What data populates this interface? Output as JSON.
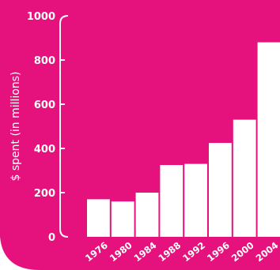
{
  "colors": {
    "panel": "#e5127d",
    "bar": "#ffffff",
    "text": "#ffffff",
    "page": "#ffffff"
  },
  "chart_data": {
    "type": "bar",
    "title": "",
    "xlabel": "",
    "ylabel": "$ spent (in millions)",
    "categories": [
      "1976",
      "1980",
      "1984",
      "1988",
      "1992",
      "1996",
      "2000",
      "2004"
    ],
    "values": [
      170,
      160,
      200,
      325,
      330,
      425,
      530,
      880
    ],
    "ylim": [
      0,
      1000
    ],
    "yticks": [
      "0",
      "200",
      "400",
      "600",
      "800",
      "1000"
    ],
    "grid": false,
    "legend": "none"
  }
}
